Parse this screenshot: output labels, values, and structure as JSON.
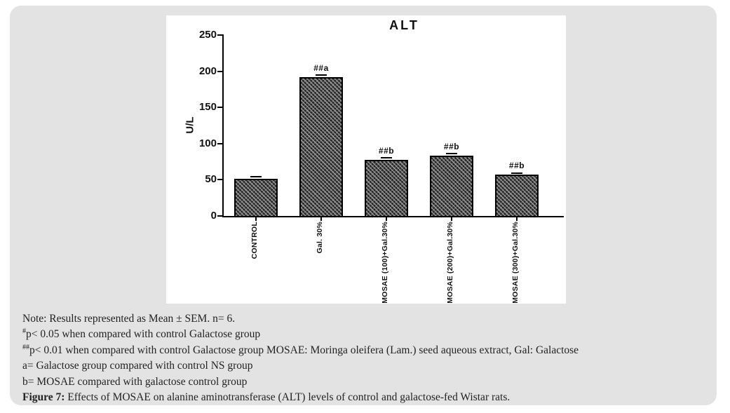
{
  "figure": {
    "panel_bg": "#e3e3e3",
    "chart_bg": "#ffffff",
    "axis_color": "#000000",
    "bar_border_color": "#000000",
    "bar_base_color": "#242424",
    "hatch_color": "#8a8a8a",
    "text_color": "#111111"
  },
  "chart_data": {
    "type": "bar",
    "title": "ALT",
    "xlabel": "",
    "ylabel": "U/L",
    "ylim": [
      0,
      250
    ],
    "yticks": [
      0,
      50,
      100,
      150,
      200,
      250
    ],
    "grid": false,
    "legend": "none",
    "bar_fill": "dark-crosshatch",
    "categories": [
      "CONTROL",
      "Gal. 30%",
      "MOSAE (100)+Gal.30%",
      "MOSAE (200)+Gal.30%",
      "MOSAE (300)+Gal.30%"
    ],
    "values": [
      51,
      192,
      78,
      83,
      57
    ],
    "sem": [
      2,
      2,
      1.5,
      2,
      1.5
    ],
    "annotations": [
      "",
      "##a",
      "##b",
      "##b",
      "##b"
    ]
  },
  "notes": {
    "lines": [
      {
        "pre_sup": "",
        "bold": "",
        "text": "Note: Results represented as Mean ± SEM. n= 6."
      },
      {
        "pre_sup": "#",
        "bold": "",
        "text": "p< 0.05 when compared with control Galactose group"
      },
      {
        "pre_sup": "##",
        "bold": "",
        "text": "p< 0.01 when compared with control Galactose group MOSAE: Moringa oleifera (Lam.) seed aqueous extract, Gal: Galactose"
      },
      {
        "pre_sup": "",
        "bold": "",
        "text": "a= Galactose group compared with control NS group"
      },
      {
        "pre_sup": "",
        "bold": "",
        "text": "b= MOSAE compared with galactose control group"
      },
      {
        "pre_sup": "",
        "bold": "Figure 7:",
        "text": " Effects of MOSAE on alanine aminotransferase (ALT) levels of control and galactose-fed Wistar rats."
      }
    ]
  }
}
